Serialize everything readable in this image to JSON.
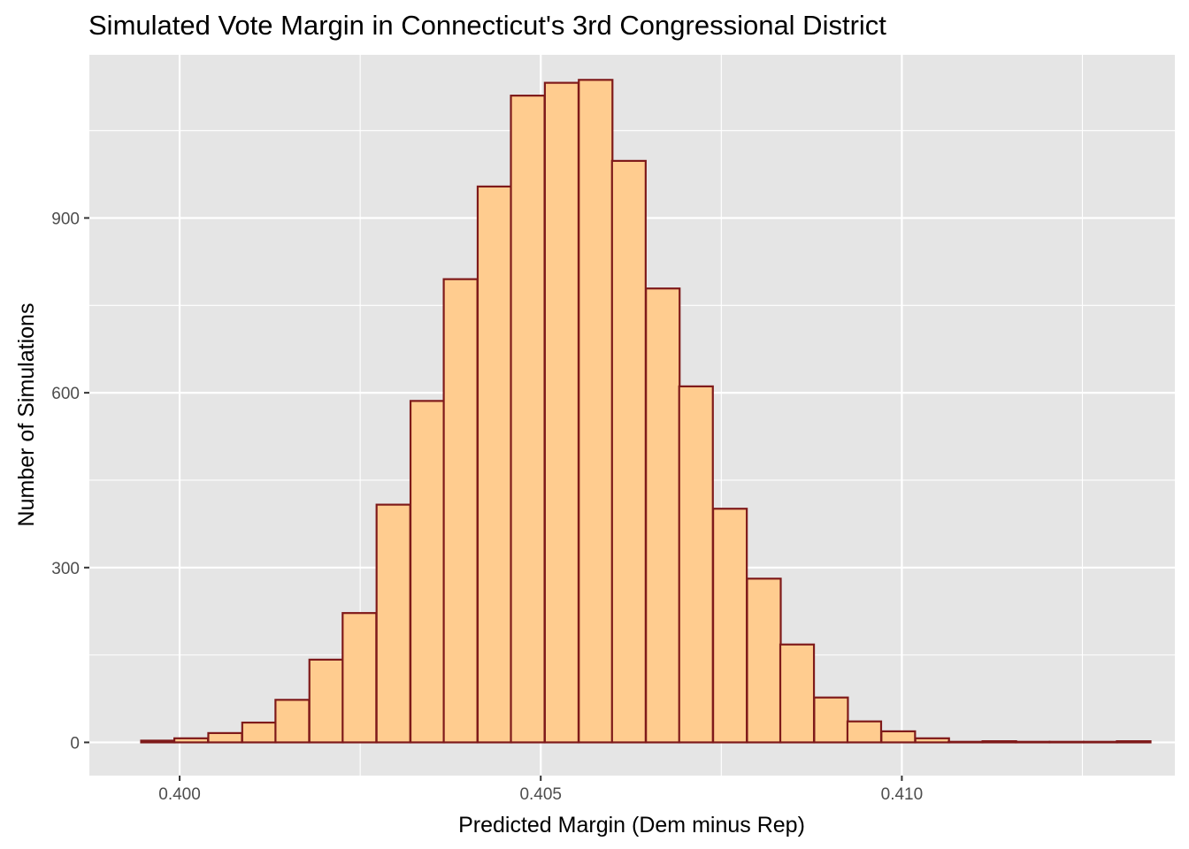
{
  "chart_data": {
    "type": "bar",
    "subtype": "histogram",
    "title": "Simulated Vote Margin in Connecticut's 3rd Congressional District",
    "xlabel": "Predicted Margin (Dem minus Rep)",
    "ylabel": "Number of Simulations",
    "xlim": [
      0.39875,
      0.41378
    ],
    "ylim": [
      -57,
      1180
    ],
    "x_ticks": [
      0.4,
      0.405,
      0.41
    ],
    "x_tick_labels": [
      "0.400",
      "0.405",
      "0.410"
    ],
    "y_ticks": [
      0,
      300,
      600,
      900
    ],
    "y_tick_labels": [
      "0",
      "300",
      "600",
      "900"
    ],
    "bin_width": 0.000466,
    "bin_centers": [
      0.3997,
      0.40016,
      0.40063,
      0.4011,
      0.40156,
      0.40203,
      0.40249,
      0.40296,
      0.40343,
      0.40389,
      0.40436,
      0.40482,
      0.40529,
      0.40576,
      0.40622,
      0.40669,
      0.40715,
      0.40762,
      0.40809,
      0.40855,
      0.40902,
      0.40948,
      0.40995,
      0.41042,
      0.41088,
      0.41135,
      0.41181,
      0.41228,
      0.41275,
      0.41321
    ],
    "values": [
      3,
      7,
      16,
      34,
      73,
      142,
      222,
      408,
      586,
      795,
      954,
      1110,
      1132,
      1137,
      998,
      779,
      611,
      401,
      281,
      168,
      77,
      36,
      19,
      7,
      1,
      2,
      1,
      1,
      1,
      2
    ],
    "grid": true,
    "colors": {
      "panel_background": "#e5e5e5",
      "grid": "#ffffff",
      "bar_fill": "#ffcc8f",
      "bar_outline": "#7f1a1a",
      "tick_label": "#4d4d4d",
      "tick_mark": "#333333"
    }
  }
}
